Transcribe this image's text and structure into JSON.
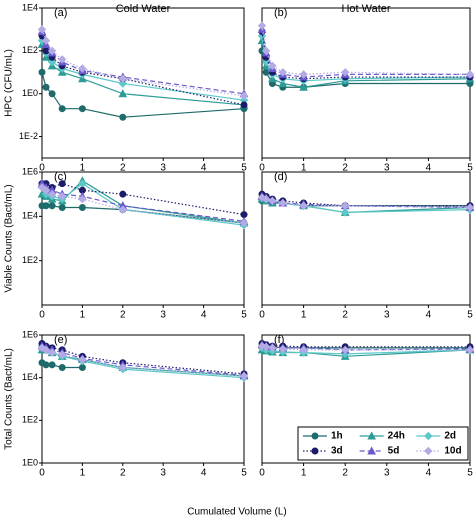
{
  "xlabel": "Cumulated Volume (L)",
  "chart_data": [
    {
      "type": "line",
      "header": "Cold Water",
      "title": "(a)",
      "ylabel": "HPC (CFU/mL)",
      "logy": true,
      "ylim": [
        0.001,
        10000
      ],
      "yticks": [
        {
          "value": 10000,
          "label": "1E4"
        },
        {
          "value": 100,
          "label": "1E2"
        },
        {
          "value": 1,
          "label": "1E0"
        },
        {
          "value": 0.01,
          "label": "1E-2"
        }
      ],
      "xlim": [
        0,
        5
      ],
      "xticks": [
        0,
        1,
        2,
        3,
        4,
        5
      ],
      "x": [
        0,
        0.1,
        0.25,
        0.5,
        1,
        2,
        5
      ],
      "series": [
        {
          "color": "#1f6b6b",
          "style": "solid",
          "values": [
            10,
            2,
            1,
            0.2,
            0.2,
            0.08,
            0.2
          ]
        },
        {
          "color": "#2e9c96",
          "style": "solid",
          "values": [
            200,
            50,
            20,
            10,
            5,
            1,
            0.3
          ]
        },
        {
          "color": "#5cc8c8",
          "style": "solid",
          "values": [
            300,
            80,
            30,
            15,
            8,
            3,
            0.5
          ]
        },
        {
          "color": "#1c1c6a",
          "style": "dotted",
          "values": [
            500,
            100,
            50,
            20,
            10,
            5,
            0.3
          ]
        },
        {
          "color": "#6a5acd",
          "style": "dashed",
          "values": [
            800,
            200,
            80,
            30,
            12,
            6,
            1
          ]
        },
        {
          "color": "#b4aae6",
          "style": "dotted",
          "values": [
            1000,
            300,
            100,
            40,
            15,
            5,
            0.8
          ]
        }
      ]
    },
    {
      "type": "line",
      "header": "Hot Water",
      "title": "(b)",
      "logy": true,
      "ylim": [
        0.001,
        10000
      ],
      "xlim": [
        0,
        5
      ],
      "xticks": [
        0,
        1,
        2,
        3,
        4,
        5
      ],
      "x": [
        0,
        0.1,
        0.25,
        0.5,
        1,
        2,
        5
      ],
      "series": [
        {
          "color": "#1f6b6b",
          "style": "solid",
          "values": [
            100,
            10,
            3,
            2,
            2,
            3,
            3
          ]
        },
        {
          "color": "#2e9c96",
          "style": "solid",
          "values": [
            300,
            20,
            5,
            3,
            2,
            4,
            5
          ]
        },
        {
          "color": "#5cc8c8",
          "style": "solid",
          "values": [
            500,
            30,
            8,
            5,
            4,
            5,
            6
          ]
        },
        {
          "color": "#1c1c6a",
          "style": "dotted",
          "values": [
            800,
            50,
            10,
            6,
            5,
            6,
            6
          ]
        },
        {
          "color": "#6a5acd",
          "style": "dashed",
          "values": [
            1000,
            80,
            15,
            8,
            6,
            8,
            8
          ]
        },
        {
          "color": "#b4aae6",
          "style": "dotted",
          "values": [
            1500,
            100,
            20,
            10,
            8,
            10,
            8
          ]
        }
      ]
    },
    {
      "type": "line",
      "title": "(c)",
      "ylabel": "Viable Counts (Bact/mL)",
      "logy": true,
      "ylim": [
        1,
        1000000
      ],
      "yticks": [
        {
          "value": 1000000,
          "label": "1E6"
        },
        {
          "value": 10000,
          "label": "1E4"
        },
        {
          "value": 100,
          "label": "1E2"
        }
      ],
      "xlim": [
        0,
        5
      ],
      "xticks": [
        0,
        1,
        2,
        3,
        4,
        5
      ],
      "x": [
        0,
        0.1,
        0.25,
        0.5,
        1,
        2,
        5
      ],
      "series": [
        {
          "color": "#1f6b6b",
          "style": "solid",
          "values": [
            30000,
            30000,
            30000,
            25000,
            25000,
            20000,
            5000
          ]
        },
        {
          "color": "#2e9c96",
          "style": "solid",
          "values": [
            100000,
            80000,
            60000,
            50000,
            400000,
            30000,
            5000
          ]
        },
        {
          "color": "#5cc8c8",
          "style": "solid",
          "values": [
            200000,
            100000,
            80000,
            60000,
            300000,
            20000,
            4000
          ]
        },
        {
          "color": "#1c1c6a",
          "style": "dotted",
          "values": [
            300000,
            300000,
            200000,
            300000,
            150000,
            100000,
            12000
          ]
        },
        {
          "color": "#6a5acd",
          "style": "dashed",
          "values": [
            300000,
            200000,
            150000,
            100000,
            80000,
            30000,
            6000
          ]
        },
        {
          "color": "#b4aae6",
          "style": "dotted",
          "values": [
            200000,
            150000,
            100000,
            80000,
            60000,
            20000,
            5000
          ]
        }
      ]
    },
    {
      "type": "line",
      "title": "(d)",
      "logy": true,
      "ylim": [
        1,
        1000000
      ],
      "xlim": [
        0,
        5
      ],
      "xticks": [
        0,
        1,
        2,
        3,
        4,
        5
      ],
      "x": [
        0,
        0.1,
        0.25,
        0.5,
        1,
        2,
        5
      ],
      "series": [
        {
          "color": "#1f6b6b",
          "style": "solid",
          "values": [
            50000,
            50000,
            40000,
            40000,
            30000,
            30000,
            30000
          ]
        },
        {
          "color": "#2e9c96",
          "style": "solid",
          "values": [
            60000,
            50000,
            40000,
            40000,
            30000,
            15000,
            25000
          ]
        },
        {
          "color": "#5cc8c8",
          "style": "solid",
          "values": [
            70000,
            60000,
            50000,
            40000,
            30000,
            15000,
            20000
          ]
        },
        {
          "color": "#1c1c6a",
          "style": "dotted",
          "values": [
            100000,
            80000,
            60000,
            50000,
            40000,
            30000,
            30000
          ]
        },
        {
          "color": "#6a5acd",
          "style": "dashed",
          "values": [
            80000,
            70000,
            50000,
            40000,
            35000,
            30000,
            25000
          ]
        },
        {
          "color": "#b4aae6",
          "style": "dotted",
          "values": [
            70000,
            60000,
            50000,
            40000,
            30000,
            30000,
            25000
          ]
        }
      ]
    },
    {
      "type": "line",
      "title": "(e)",
      "ylabel": "Total Counts (Bact/mL)",
      "logy": true,
      "ylim": [
        1,
        1000000
      ],
      "yticks": [
        {
          "value": 1000000,
          "label": "1E6"
        },
        {
          "value": 10000,
          "label": "1E4"
        },
        {
          "value": 100,
          "label": "1E2"
        },
        {
          "value": 1,
          "label": "1E0"
        }
      ],
      "xlim": [
        0,
        5
      ],
      "xticks": [
        0,
        1,
        2,
        3,
        4,
        5
      ],
      "x": [
        0,
        0.1,
        0.25,
        0.5,
        1,
        2,
        5
      ],
      "series": [
        {
          "color": "#1f6b6b",
          "style": "solid",
          "values": [
            50000,
            40000,
            40000,
            30000,
            30000,
            null,
            null
          ]
        },
        {
          "color": "#2e9c96",
          "style": "solid",
          "values": [
            200000,
            200000,
            150000,
            100000,
            70000,
            30000,
            12000
          ]
        },
        {
          "color": "#5cc8c8",
          "style": "solid",
          "values": [
            300000,
            200000,
            150000,
            100000,
            60000,
            25000,
            10000
          ]
        },
        {
          "color": "#1c1c6a",
          "style": "dotted",
          "values": [
            400000,
            300000,
            250000,
            200000,
            100000,
            50000,
            15000
          ]
        },
        {
          "color": "#6a5acd",
          "style": "dashed",
          "values": [
            300000,
            250000,
            200000,
            150000,
            80000,
            40000,
            13000
          ]
        },
        {
          "color": "#b4aae6",
          "style": "dotted",
          "values": [
            250000,
            200000,
            150000,
            120000,
            70000,
            30000,
            12000
          ]
        }
      ]
    },
    {
      "type": "line",
      "title": "(f)",
      "logy": true,
      "ylim": [
        1,
        1000000
      ],
      "legend": "lower right",
      "xlim": [
        0,
        5
      ],
      "xticks": [
        0,
        1,
        2,
        3,
        4,
        5
      ],
      "x": [
        0,
        0.1,
        0.25,
        0.5,
        1,
        2,
        5
      ],
      "series": [
        {
          "name": "1h",
          "color": "#1f6b6b",
          "style": "solid",
          "values": [
            300000,
            300000,
            280000,
            250000,
            250000,
            250000,
            250000
          ]
        },
        {
          "name": "24h",
          "color": "#2e9c96",
          "style": "solid",
          "values": [
            200000,
            180000,
            160000,
            150000,
            150000,
            100000,
            200000
          ]
        },
        {
          "name": "2d",
          "color": "#5cc8c8",
          "style": "solid",
          "values": [
            250000,
            200000,
            180000,
            160000,
            150000,
            130000,
            200000
          ]
        },
        {
          "name": "3d",
          "color": "#1c1c6a",
          "style": "dotted",
          "values": [
            400000,
            350000,
            300000,
            300000,
            280000,
            280000,
            280000
          ]
        },
        {
          "name": "5d",
          "color": "#6a5acd",
          "style": "dashed",
          "values": [
            350000,
            300000,
            280000,
            250000,
            250000,
            200000,
            220000
          ]
        },
        {
          "name": "10d",
          "color": "#b4aae6",
          "style": "dotted",
          "values": [
            300000,
            280000,
            250000,
            220000,
            200000,
            200000,
            200000
          ]
        }
      ]
    }
  ]
}
